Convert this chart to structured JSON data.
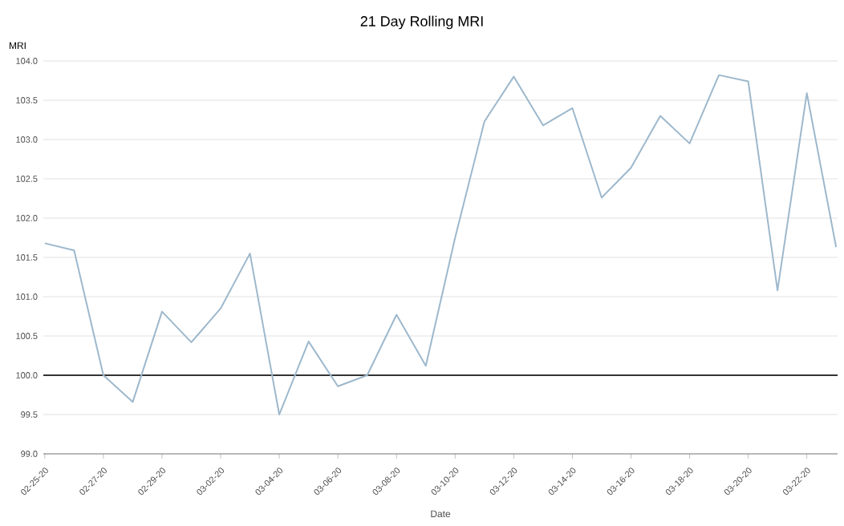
{
  "chart_data": {
    "type": "line",
    "title": "21 Day Rolling MRI",
    "xlabel": "Date",
    "ylabel": "MRI",
    "categories": [
      "02-25-20",
      null,
      "02-27-20",
      null,
      "02-29-20",
      null,
      "03-02-20",
      null,
      "03-04-20",
      null,
      "03-06-20",
      null,
      "03-08-20",
      null,
      "03-10-20",
      null,
      "03-12-20",
      null,
      "03-14-20",
      null,
      "03-16-20",
      null,
      "03-18-20",
      null,
      "03-20-20",
      null,
      "03-22-20",
      null
    ],
    "series": [
      {
        "color": "#9db8cc",
        "values": [
          101.68,
          101.59,
          100.0,
          99.66,
          100.81,
          100.42,
          100.85,
          101.55,
          99.5,
          100.43,
          99.86,
          100.0,
          100.77,
          100.12,
          101.75,
          103.23,
          103.8,
          103.18,
          103.4,
          102.26,
          102.64,
          103.3,
          102.95,
          103.82,
          103.74,
          101.08,
          103.59,
          101.63
        ]
      }
    ],
    "ylim": [
      99,
      104
    ],
    "yticks": [
      {
        "value": 99,
        "label": "99.0"
      },
      {
        "value": 99.5,
        "label": "99.5"
      },
      {
        "value": 100,
        "label": "100.0"
      },
      {
        "value": 100.5,
        "label": "100.5"
      },
      {
        "value": 101,
        "label": "101.0"
      },
      {
        "value": 101.5,
        "label": "101.5"
      },
      {
        "value": 102,
        "label": "102.0"
      },
      {
        "value": 102.5,
        "label": "102.5"
      },
      {
        "value": 103,
        "label": "103.0"
      },
      {
        "value": 103.5,
        "label": "103.5"
      },
      {
        "value": 104,
        "label": "104.0"
      }
    ],
    "grid": "y",
    "ref_lines": [
      {
        "axis": "y",
        "value": 100,
        "color": "#333333"
      }
    ]
  }
}
